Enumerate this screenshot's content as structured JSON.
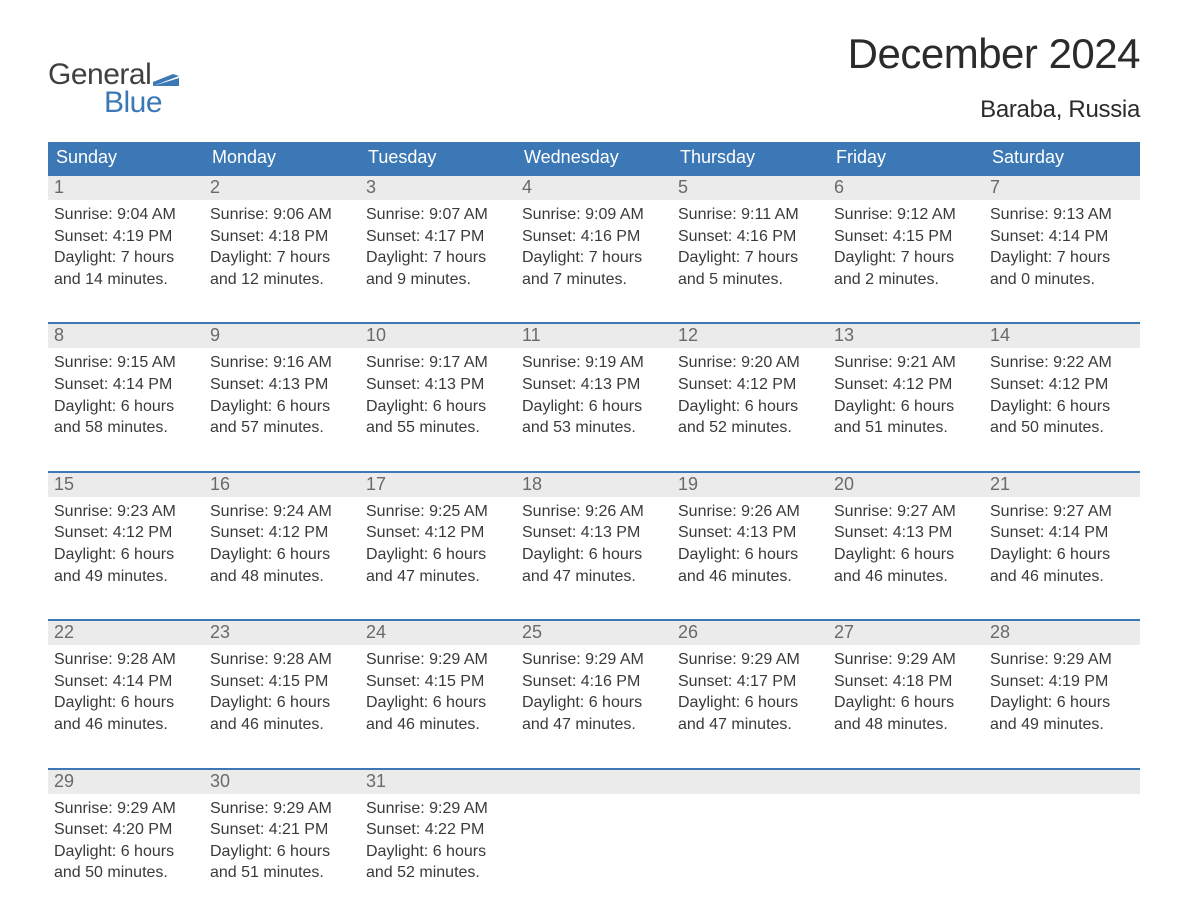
{
  "logo": {
    "top": "General",
    "bottom": "Blue",
    "flag_color": "#3b78b5"
  },
  "title": "December 2024",
  "location": "Baraba, Russia",
  "colors": {
    "header_bg": "#3b78b5",
    "daynum_bg": "#ebebeb",
    "week_border": "#3b78b5",
    "text": "#3a3a3a",
    "daynum_text": "#6a6a6a"
  },
  "weekdays": [
    "Sunday",
    "Monday",
    "Tuesday",
    "Wednesday",
    "Thursday",
    "Friday",
    "Saturday"
  ],
  "weeks": [
    [
      {
        "n": "1",
        "sunrise": "Sunrise: 9:04 AM",
        "sunset": "Sunset: 4:19 PM",
        "d1": "Daylight: 7 hours",
        "d2": "and 14 minutes."
      },
      {
        "n": "2",
        "sunrise": "Sunrise: 9:06 AM",
        "sunset": "Sunset: 4:18 PM",
        "d1": "Daylight: 7 hours",
        "d2": "and 12 minutes."
      },
      {
        "n": "3",
        "sunrise": "Sunrise: 9:07 AM",
        "sunset": "Sunset: 4:17 PM",
        "d1": "Daylight: 7 hours",
        "d2": "and 9 minutes."
      },
      {
        "n": "4",
        "sunrise": "Sunrise: 9:09 AM",
        "sunset": "Sunset: 4:16 PM",
        "d1": "Daylight: 7 hours",
        "d2": "and 7 minutes."
      },
      {
        "n": "5",
        "sunrise": "Sunrise: 9:11 AM",
        "sunset": "Sunset: 4:16 PM",
        "d1": "Daylight: 7 hours",
        "d2": "and 5 minutes."
      },
      {
        "n": "6",
        "sunrise": "Sunrise: 9:12 AM",
        "sunset": "Sunset: 4:15 PM",
        "d1": "Daylight: 7 hours",
        "d2": "and 2 minutes."
      },
      {
        "n": "7",
        "sunrise": "Sunrise: 9:13 AM",
        "sunset": "Sunset: 4:14 PM",
        "d1": "Daylight: 7 hours",
        "d2": "and 0 minutes."
      }
    ],
    [
      {
        "n": "8",
        "sunrise": "Sunrise: 9:15 AM",
        "sunset": "Sunset: 4:14 PM",
        "d1": "Daylight: 6 hours",
        "d2": "and 58 minutes."
      },
      {
        "n": "9",
        "sunrise": "Sunrise: 9:16 AM",
        "sunset": "Sunset: 4:13 PM",
        "d1": "Daylight: 6 hours",
        "d2": "and 57 minutes."
      },
      {
        "n": "10",
        "sunrise": "Sunrise: 9:17 AM",
        "sunset": "Sunset: 4:13 PM",
        "d1": "Daylight: 6 hours",
        "d2": "and 55 minutes."
      },
      {
        "n": "11",
        "sunrise": "Sunrise: 9:19 AM",
        "sunset": "Sunset: 4:13 PM",
        "d1": "Daylight: 6 hours",
        "d2": "and 53 minutes."
      },
      {
        "n": "12",
        "sunrise": "Sunrise: 9:20 AM",
        "sunset": "Sunset: 4:12 PM",
        "d1": "Daylight: 6 hours",
        "d2": "and 52 minutes."
      },
      {
        "n": "13",
        "sunrise": "Sunrise: 9:21 AM",
        "sunset": "Sunset: 4:12 PM",
        "d1": "Daylight: 6 hours",
        "d2": "and 51 minutes."
      },
      {
        "n": "14",
        "sunrise": "Sunrise: 9:22 AM",
        "sunset": "Sunset: 4:12 PM",
        "d1": "Daylight: 6 hours",
        "d2": "and 50 minutes."
      }
    ],
    [
      {
        "n": "15",
        "sunrise": "Sunrise: 9:23 AM",
        "sunset": "Sunset: 4:12 PM",
        "d1": "Daylight: 6 hours",
        "d2": "and 49 minutes."
      },
      {
        "n": "16",
        "sunrise": "Sunrise: 9:24 AM",
        "sunset": "Sunset: 4:12 PM",
        "d1": "Daylight: 6 hours",
        "d2": "and 48 minutes."
      },
      {
        "n": "17",
        "sunrise": "Sunrise: 9:25 AM",
        "sunset": "Sunset: 4:12 PM",
        "d1": "Daylight: 6 hours",
        "d2": "and 47 minutes."
      },
      {
        "n": "18",
        "sunrise": "Sunrise: 9:26 AM",
        "sunset": "Sunset: 4:13 PM",
        "d1": "Daylight: 6 hours",
        "d2": "and 47 minutes."
      },
      {
        "n": "19",
        "sunrise": "Sunrise: 9:26 AM",
        "sunset": "Sunset: 4:13 PM",
        "d1": "Daylight: 6 hours",
        "d2": "and 46 minutes."
      },
      {
        "n": "20",
        "sunrise": "Sunrise: 9:27 AM",
        "sunset": "Sunset: 4:13 PM",
        "d1": "Daylight: 6 hours",
        "d2": "and 46 minutes."
      },
      {
        "n": "21",
        "sunrise": "Sunrise: 9:27 AM",
        "sunset": "Sunset: 4:14 PM",
        "d1": "Daylight: 6 hours",
        "d2": "and 46 minutes."
      }
    ],
    [
      {
        "n": "22",
        "sunrise": "Sunrise: 9:28 AM",
        "sunset": "Sunset: 4:14 PM",
        "d1": "Daylight: 6 hours",
        "d2": "and 46 minutes."
      },
      {
        "n": "23",
        "sunrise": "Sunrise: 9:28 AM",
        "sunset": "Sunset: 4:15 PM",
        "d1": "Daylight: 6 hours",
        "d2": "and 46 minutes."
      },
      {
        "n": "24",
        "sunrise": "Sunrise: 9:29 AM",
        "sunset": "Sunset: 4:15 PM",
        "d1": "Daylight: 6 hours",
        "d2": "and 46 minutes."
      },
      {
        "n": "25",
        "sunrise": "Sunrise: 9:29 AM",
        "sunset": "Sunset: 4:16 PM",
        "d1": "Daylight: 6 hours",
        "d2": "and 47 minutes."
      },
      {
        "n": "26",
        "sunrise": "Sunrise: 9:29 AM",
        "sunset": "Sunset: 4:17 PM",
        "d1": "Daylight: 6 hours",
        "d2": "and 47 minutes."
      },
      {
        "n": "27",
        "sunrise": "Sunrise: 9:29 AM",
        "sunset": "Sunset: 4:18 PM",
        "d1": "Daylight: 6 hours",
        "d2": "and 48 minutes."
      },
      {
        "n": "28",
        "sunrise": "Sunrise: 9:29 AM",
        "sunset": "Sunset: 4:19 PM",
        "d1": "Daylight: 6 hours",
        "d2": "and 49 minutes."
      }
    ],
    [
      {
        "n": "29",
        "sunrise": "Sunrise: 9:29 AM",
        "sunset": "Sunset: 4:20 PM",
        "d1": "Daylight: 6 hours",
        "d2": "and 50 minutes."
      },
      {
        "n": "30",
        "sunrise": "Sunrise: 9:29 AM",
        "sunset": "Sunset: 4:21 PM",
        "d1": "Daylight: 6 hours",
        "d2": "and 51 minutes."
      },
      {
        "n": "31",
        "sunrise": "Sunrise: 9:29 AM",
        "sunset": "Sunset: 4:22 PM",
        "d1": "Daylight: 6 hours",
        "d2": "and 52 minutes."
      },
      null,
      null,
      null,
      null
    ]
  ]
}
